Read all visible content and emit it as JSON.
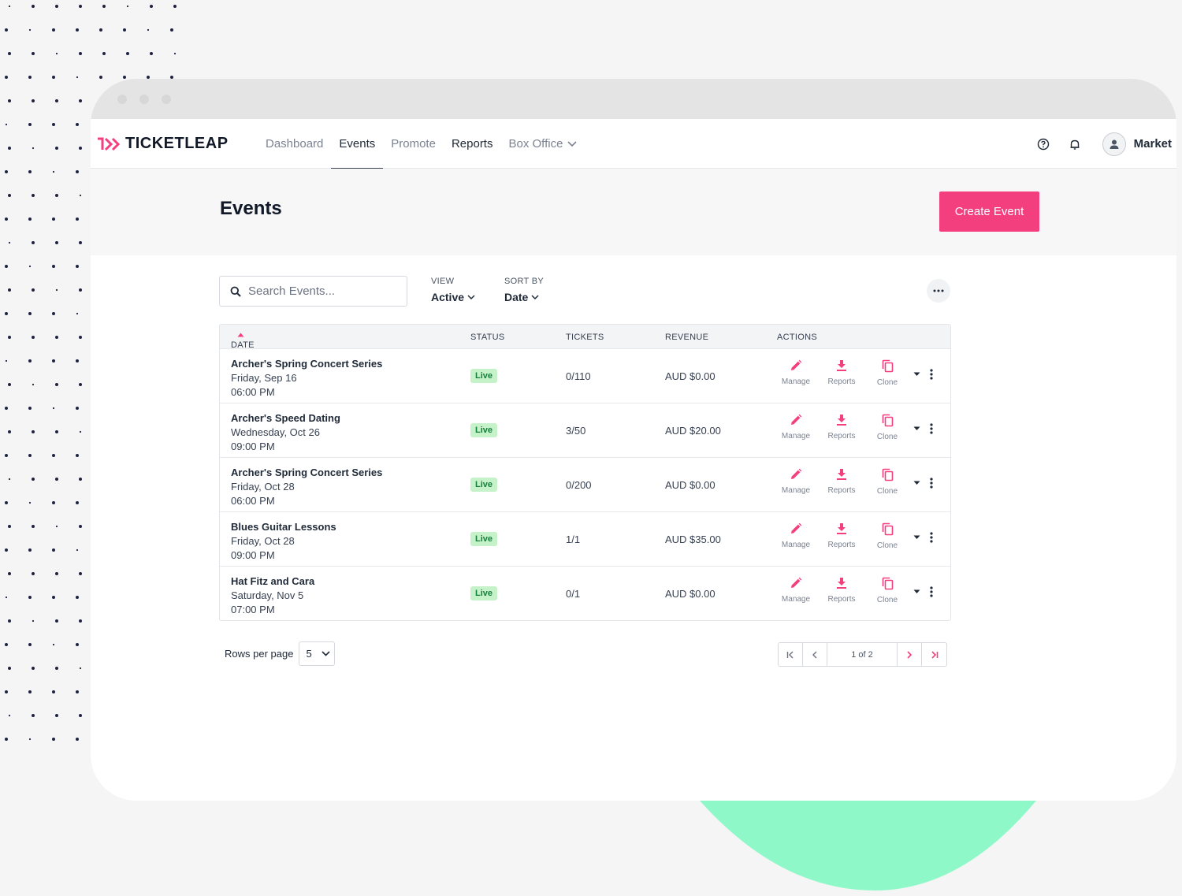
{
  "brand": {
    "name": "TICKETLEAP",
    "accent": "#f43f7f"
  },
  "nav": {
    "links": [
      "Dashboard",
      "Events",
      "Promote",
      "Reports",
      "Box Office"
    ],
    "active": "Events",
    "user_name": "Market"
  },
  "page": {
    "title": "Events",
    "create_label": "Create Event"
  },
  "toolbar": {
    "search_placeholder": "Search Events...",
    "view_label": "VIEW",
    "view_value": "Active",
    "sort_label": "SORT BY",
    "sort_value": "Date"
  },
  "table": {
    "columns": [
      "DATE",
      "STATUS",
      "TICKETS",
      "REVENUE",
      "ACTIONS"
    ],
    "action_labels": [
      "Manage",
      "Reports",
      "Clone"
    ],
    "rows": [
      {
        "name": "Archer's Spring Concert Series",
        "day": "Friday, Sep 16",
        "time": "06:00 PM",
        "status": "Live",
        "tickets": "0/110",
        "revenue": "AUD $0.00"
      },
      {
        "name": "Archer's Speed Dating",
        "day": "Wednesday, Oct 26",
        "time": "09:00 PM",
        "status": "Live",
        "tickets": "3/50",
        "revenue": "AUD $20.00"
      },
      {
        "name": "Archer's Spring Concert Series",
        "day": "Friday, Oct 28",
        "time": "06:00 PM",
        "status": "Live",
        "tickets": "0/200",
        "revenue": "AUD $0.00"
      },
      {
        "name": "Blues Guitar Lessons",
        "day": "Friday, Oct 28",
        "time": "09:00 PM",
        "status": "Live",
        "tickets": "1/1",
        "revenue": "AUD $35.00"
      },
      {
        "name": "Hat Fitz and Cara",
        "day": "Saturday, Nov 5",
        "time": "07:00 PM",
        "status": "Live",
        "tickets": "0/1",
        "revenue": "AUD $0.00"
      }
    ]
  },
  "pagination": {
    "rows_per_page_label": "Rows per page",
    "rows_per_page": "5",
    "page_info": "1 of 2"
  }
}
